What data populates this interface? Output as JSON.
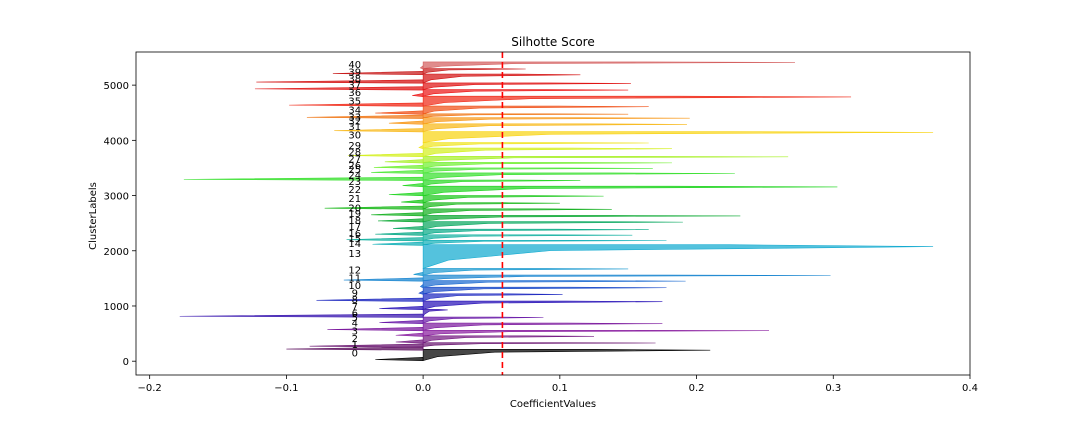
{
  "chart_data": {
    "type": "bar",
    "title": "Silhotte Score",
    "xlabel": "CoefficientValues",
    "ylabel": "ClusterLabels",
    "xlim": [
      -0.21,
      0.4
    ],
    "ylim": [
      -250,
      5600
    ],
    "x_ticks": [
      -0.2,
      -0.1,
      0.0,
      0.1,
      0.2,
      0.3,
      0.4
    ],
    "x_tick_labels": [
      "−0.2",
      "−0.1",
      "0.0",
      "0.1",
      "0.2",
      "0.3",
      "0.4"
    ],
    "y_ticks": [
      0,
      1000,
      2000,
      3000,
      4000,
      5000
    ],
    "y_tick_labels": [
      "0",
      "1000",
      "2000",
      "3000",
      "4000",
      "5000"
    ],
    "average_line": {
      "x": 0.058,
      "color": "#ff0000",
      "style": "dashed"
    },
    "grid": false,
    "legend": "none",
    "clusters": [
      {
        "label": "0",
        "label_y": 160,
        "start": 10,
        "end": 215,
        "min": -0.035,
        "max": 0.21,
        "color": "#000000"
      },
      {
        "label": "1",
        "label_y": 310,
        "start": 215,
        "end": 265,
        "min": -0.1,
        "max": 0.0,
        "color": "#5c0f5e"
      },
      {
        "label": "1",
        "label_y": 310,
        "start": 265,
        "end": 335,
        "min": -0.083,
        "max": 0.17,
        "color": "#6a1670"
      },
      {
        "label": "2",
        "label_y": 420,
        "start": 335,
        "end": 460,
        "min": -0.02,
        "max": 0.125,
        "color": "#761c82"
      },
      {
        "label": "3",
        "label_y": 560,
        "start": 460,
        "end": 560,
        "min": -0.02,
        "max": 0.253,
        "color": "#8a1fa0"
      },
      {
        "label": "4",
        "label_y": 700,
        "start": 560,
        "end": 690,
        "min": -0.07,
        "max": 0.175,
        "color": "#7c1a9e"
      },
      {
        "label": "5",
        "label_y": 800,
        "start": 690,
        "end": 800,
        "min": -0.032,
        "max": 0.088,
        "color": "#6a1aa8"
      },
      {
        "label": "6",
        "label_y": 880,
        "start": 800,
        "end": 940,
        "min": -0.178,
        "max": 0.018,
        "color": "#3a18b0"
      },
      {
        "label": "7",
        "label_y": 1000,
        "start": 940,
        "end": 1090,
        "min": -0.032,
        "max": 0.175,
        "color": "#2a14b8"
      },
      {
        "label": "8",
        "label_y": 1130,
        "start": 1090,
        "end": 1220,
        "min": -0.078,
        "max": 0.102,
        "color": "#1f2ac0"
      },
      {
        "label": "9",
        "label_y": 1240,
        "start": 1220,
        "end": 1340,
        "min": -0.003,
        "max": 0.178,
        "color": "#1848c8"
      },
      {
        "label": "10",
        "label_y": 1380,
        "start": 1340,
        "end": 1460,
        "min": -0.002,
        "max": 0.192,
        "color": "#1a6ad0"
      },
      {
        "label": "11",
        "label_y": 1520,
        "start": 1460,
        "end": 1560,
        "min": -0.058,
        "max": 0.298,
        "color": "#1a86d0"
      },
      {
        "label": "12",
        "label_y": 1660,
        "start": 1560,
        "end": 1680,
        "min": -0.007,
        "max": 0.15,
        "color": "#1c9ad0"
      },
      {
        "label": "13",
        "label_y": 1960,
        "start": 1680,
        "end": 2110,
        "min": 0.0,
        "max": 0.373,
        "color": "#12aad0"
      },
      {
        "label": "14",
        "label_y": 2140,
        "start": 2110,
        "end": 2190,
        "min": -0.037,
        "max": 0.178,
        "color": "#14b0b8"
      },
      {
        "label": "15",
        "label_y": 2230,
        "start": 2190,
        "end": 2290,
        "min": -0.056,
        "max": 0.153,
        "color": "#12b0a0"
      },
      {
        "label": "16",
        "label_y": 2320,
        "start": 2290,
        "end": 2390,
        "min": -0.035,
        "max": 0.165,
        "color": "#0aaa88"
      },
      {
        "label": "17",
        "label_y": 2450,
        "start": 2390,
        "end": 2530,
        "min": -0.022,
        "max": 0.19,
        "color": "#0aa860"
      },
      {
        "label": "18",
        "label_y": 2560,
        "start": 2530,
        "end": 2640,
        "min": -0.033,
        "max": 0.232,
        "color": "#0aa832"
      },
      {
        "label": "19",
        "label_y": 2680,
        "start": 2640,
        "end": 2760,
        "min": -0.038,
        "max": 0.138,
        "color": "#14b020"
      },
      {
        "label": "20",
        "label_y": 2780,
        "start": 2760,
        "end": 2870,
        "min": -0.072,
        "max": 0.1,
        "color": "#18b818"
      },
      {
        "label": "21",
        "label_y": 2960,
        "start": 2870,
        "end": 3000,
        "min": -0.016,
        "max": 0.132,
        "color": "#1ac81a"
      },
      {
        "label": "22",
        "label_y": 3120,
        "start": 3000,
        "end": 3170,
        "min": -0.025,
        "max": 0.303,
        "color": "#1ed41e"
      },
      {
        "label": "23",
        "label_y": 3260,
        "start": 3170,
        "end": 3280,
        "min": -0.015,
        "max": 0.115,
        "color": "#2ad826"
      },
      {
        "label": "24",
        "label_y": 3380,
        "start": 3280,
        "end": 3410,
        "min": -0.175,
        "max": 0.228,
        "color": "#38e02e"
      },
      {
        "label": "25",
        "label_y": 3480,
        "start": 3410,
        "end": 3500,
        "min": -0.038,
        "max": 0.168,
        "color": "#4ee838"
      },
      {
        "label": "26",
        "label_y": 3550,
        "start": 3500,
        "end": 3600,
        "min": -0.036,
        "max": 0.182,
        "color": "#72f032"
      },
      {
        "label": "27",
        "label_y": 3670,
        "start": 3600,
        "end": 3710,
        "min": -0.028,
        "max": 0.267,
        "color": "#a8f028"
      },
      {
        "label": "28",
        "label_y": 3800,
        "start": 3710,
        "end": 3860,
        "min": -0.055,
        "max": 0.182,
        "color": "#d4f020"
      },
      {
        "label": "29",
        "label_y": 3920,
        "start": 3860,
        "end": 3960,
        "min": -0.003,
        "max": 0.165,
        "color": "#f0e420"
      },
      {
        "label": "30",
        "label_y": 4110,
        "start": 3960,
        "end": 4160,
        "min": 0.0,
        "max": 0.373,
        "color": "#f8d414"
      },
      {
        "label": "31",
        "label_y": 4260,
        "start": 4160,
        "end": 4300,
        "min": -0.065,
        "max": 0.193,
        "color": "#f8b818"
      },
      {
        "label": "32",
        "label_y": 4360,
        "start": 4300,
        "end": 4410,
        "min": -0.025,
        "max": 0.195,
        "color": "#f89818"
      },
      {
        "label": "33",
        "label_y": 4430,
        "start": 4410,
        "end": 4480,
        "min": -0.085,
        "max": 0.15,
        "color": "#f07818"
      },
      {
        "label": "34",
        "label_y": 4560,
        "start": 4480,
        "end": 4620,
        "min": -0.035,
        "max": 0.165,
        "color": "#f05018"
      },
      {
        "label": "35",
        "label_y": 4720,
        "start": 4620,
        "end": 4800,
        "min": -0.098,
        "max": 0.313,
        "color": "#f02a18"
      },
      {
        "label": "36",
        "label_y": 4880,
        "start": 4800,
        "end": 4920,
        "min": -0.008,
        "max": 0.15,
        "color": "#ec1818"
      },
      {
        "label": "37",
        "label_y": 5010,
        "start": 4920,
        "end": 5040,
        "min": -0.123,
        "max": 0.152,
        "color": "#e01414"
      },
      {
        "label": "38",
        "label_y": 5130,
        "start": 5040,
        "end": 5200,
        "min": -0.122,
        "max": 0.115,
        "color": "#d41414"
      },
      {
        "label": "39",
        "label_y": 5250,
        "start": 5200,
        "end": 5300,
        "min": -0.066,
        "max": 0.075,
        "color": "#c81c1c"
      },
      {
        "label": "40",
        "label_y": 5380,
        "start": 5300,
        "end": 5420,
        "min": -0.002,
        "max": 0.272,
        "color": "#d46060"
      }
    ]
  }
}
